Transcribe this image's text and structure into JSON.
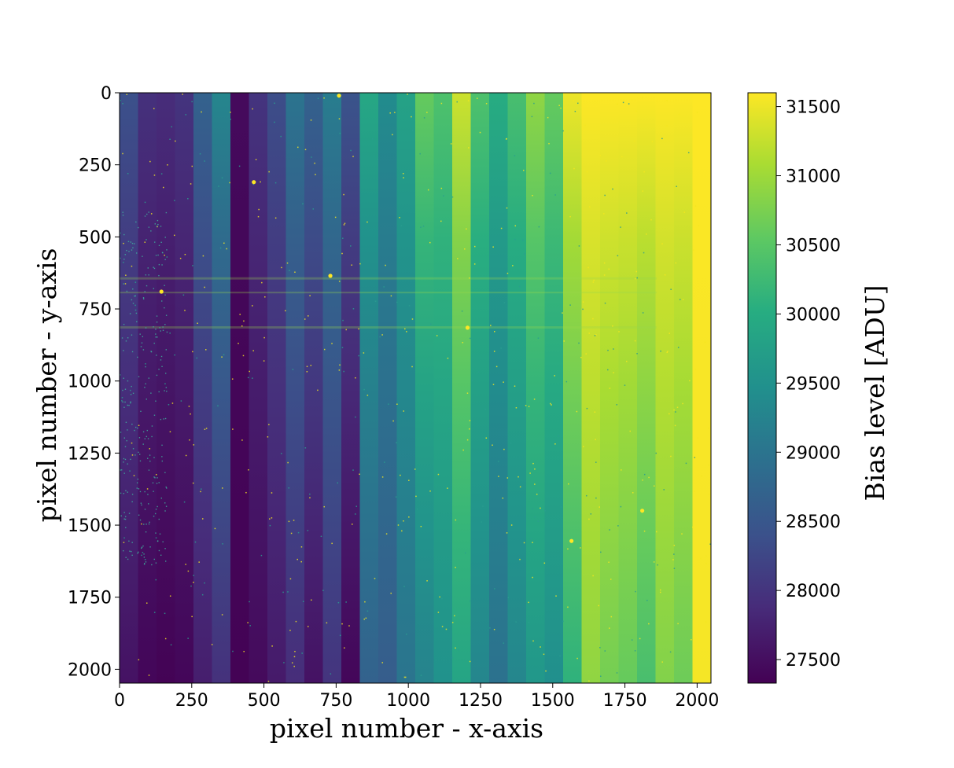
{
  "chart_data": {
    "type": "heatmap",
    "xlabel": "pixel number - x-axis",
    "ylabel": "pixel number - y-axis",
    "xlim": [
      0,
      2048
    ],
    "ylim": [
      2048,
      0
    ],
    "y_inverted": true,
    "xticks": [
      0,
      250,
      500,
      750,
      1000,
      1250,
      1500,
      1750,
      2000
    ],
    "yticks": [
      0,
      250,
      500,
      750,
      1000,
      1250,
      1500,
      1750,
      2000
    ],
    "colormap": "viridis",
    "colorbar": {
      "label": "Bias level [ADU]",
      "range": [
        27330,
        31600
      ],
      "ticks": [
        27500,
        28000,
        28500,
        29000,
        29500,
        30000,
        30500,
        31000,
        31500
      ]
    },
    "columns": [
      {
        "x0": 0,
        "x1": 64,
        "top": 28400,
        "bottom": 27550
      },
      {
        "x0": 64,
        "x1": 128,
        "top": 27950,
        "bottom": 27400
      },
      {
        "x0": 128,
        "x1": 192,
        "top": 27900,
        "bottom": 27350
      },
      {
        "x0": 192,
        "x1": 256,
        "top": 28000,
        "bottom": 27400
      },
      {
        "x0": 256,
        "x1": 320,
        "top": 28700,
        "bottom": 27700
      },
      {
        "x0": 320,
        "x1": 384,
        "top": 29300,
        "bottom": 27950
      },
      {
        "x0": 384,
        "x1": 448,
        "top": 27450,
        "bottom": 27350
      },
      {
        "x0": 448,
        "x1": 512,
        "top": 28000,
        "bottom": 27450
      },
      {
        "x0": 512,
        "x1": 576,
        "top": 28350,
        "bottom": 27650
      },
      {
        "x0": 576,
        "x1": 640,
        "top": 29000,
        "bottom": 27900
      },
      {
        "x0": 640,
        "x1": 704,
        "top": 28700,
        "bottom": 27550
      },
      {
        "x0": 704,
        "x1": 768,
        "top": 29150,
        "bottom": 28000
      },
      {
        "x0": 768,
        "x1": 832,
        "top": 28450,
        "bottom": 27400
      },
      {
        "x0": 832,
        "x1": 896,
        "top": 29900,
        "bottom": 28700
      },
      {
        "x0": 896,
        "x1": 960,
        "top": 29400,
        "bottom": 28600
      },
      {
        "x0": 960,
        "x1": 1024,
        "top": 29800,
        "bottom": 29000
      },
      {
        "x0": 1024,
        "x1": 1088,
        "top": 30600,
        "bottom": 29250
      },
      {
        "x0": 1088,
        "x1": 1152,
        "top": 30400,
        "bottom": 29500
      },
      {
        "x0": 1152,
        "x1": 1216,
        "top": 31300,
        "bottom": 29850
      },
      {
        "x0": 1216,
        "x1": 1280,
        "top": 30400,
        "bottom": 29300
      },
      {
        "x0": 1280,
        "x1": 1344,
        "top": 30000,
        "bottom": 28950
      },
      {
        "x0": 1344,
        "x1": 1408,
        "top": 30350,
        "bottom": 29300
      },
      {
        "x0": 1408,
        "x1": 1472,
        "top": 30900,
        "bottom": 29600
      },
      {
        "x0": 1472,
        "x1": 1536,
        "top": 30600,
        "bottom": 29450
      },
      {
        "x0": 1536,
        "x1": 1600,
        "top": 31500,
        "bottom": 30100
      },
      {
        "x0": 1600,
        "x1": 1664,
        "top": 31600,
        "bottom": 30900
      },
      {
        "x0": 1664,
        "x1": 1728,
        "top": 31600,
        "bottom": 30700
      },
      {
        "x0": 1728,
        "x1": 1792,
        "top": 31600,
        "bottom": 30600
      },
      {
        "x0": 1792,
        "x1": 1856,
        "top": 31600,
        "bottom": 30350
      },
      {
        "x0": 1856,
        "x1": 1920,
        "top": 31600,
        "bottom": 30800
      },
      {
        "x0": 1920,
        "x1": 1984,
        "top": 31600,
        "bottom": 30650
      },
      {
        "x0": 1984,
        "x1": 2048,
        "top": 31600,
        "bottom": 31550
      }
    ],
    "horizontal_stripes": [
      {
        "y": 640,
        "height": 8
      },
      {
        "y": 690,
        "height": 6
      },
      {
        "y": 810,
        "height": 8
      }
    ],
    "hot_spots": [
      {
        "x": 145,
        "y": 690
      },
      {
        "x": 730,
        "y": 635
      },
      {
        "x": 1205,
        "y": 815
      },
      {
        "x": 1810,
        "y": 1450
      },
      {
        "x": 760,
        "y": 10
      },
      {
        "x": 465,
        "y": 310
      },
      {
        "x": 1565,
        "y": 1555
      }
    ]
  }
}
